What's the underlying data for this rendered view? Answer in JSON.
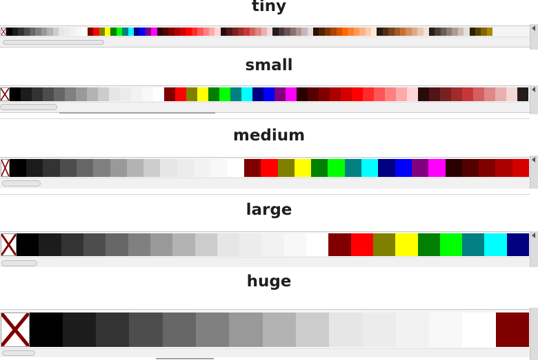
{
  "palettes": [
    {
      "label": "tiny"
    },
    {
      "label": "small"
    },
    {
      "label": "medium"
    },
    {
      "label": "large"
    },
    {
      "label": "huge"
    }
  ],
  "colors": {
    "grays": [
      "#000000",
      "#1c1c1c",
      "#333333",
      "#4d4d4d",
      "#666666",
      "#808080",
      "#999999",
      "#b3b3b3",
      "#cccccc",
      "#e6e6e6",
      "#ececec",
      "#f2f2f2",
      "#f8f8f8",
      "#ffffff"
    ],
    "primaries": [
      "#800000",
      "#ff0000",
      "#808000",
      "#ffff00",
      "#008000",
      "#00ff00",
      "#008080",
      "#00ffff",
      "#000080",
      "#0000ff",
      "#800080",
      "#ff00ff"
    ],
    "reds": [
      "#2b0000",
      "#550000",
      "#800000",
      "#aa0000",
      "#d40000",
      "#ff0000",
      "#ff2a2a",
      "#ff5555",
      "#ff8080",
      "#ffaaaa",
      "#ffd5d5"
    ],
    "rose": [
      "#280b0b",
      "#501616",
      "#782121",
      "#a02c2c",
      "#c83737",
      "#d35f5f",
      "#de8787",
      "#e9afaf",
      "#f4d7d7"
    ],
    "rose_gray": [
      "#241c1c",
      "#483737",
      "#6c5353",
      "#916f6f",
      "#ac9393",
      "#c8b7b7",
      "#e3dbdb"
    ],
    "oranges": [
      "#2b1100",
      "#552200",
      "#803300",
      "#aa4400",
      "#d45500",
      "#ff6600",
      "#ff7f2a",
      "#ff9955",
      "#ffb380",
      "#ffccaa",
      "#ffe6d5"
    ],
    "browns": [
      "#281a0b",
      "#502d16",
      "#784421",
      "#a05a2c",
      "#c87137",
      "#d38d5f",
      "#deaa87",
      "#e9c6af",
      "#f4e3d7"
    ],
    "brown_gray": [
      "#241f1c",
      "#483e37",
      "#6c5d53",
      "#917c6f",
      "#ac9d93",
      "#c8beb7",
      "#e3dedb"
    ],
    "olive": [
      "#2b2200",
      "#554400",
      "#806600",
      "#aa8800"
    ]
  },
  "none_swatch": {
    "icon": "none-color-x-icon",
    "line_color": "#800000"
  }
}
